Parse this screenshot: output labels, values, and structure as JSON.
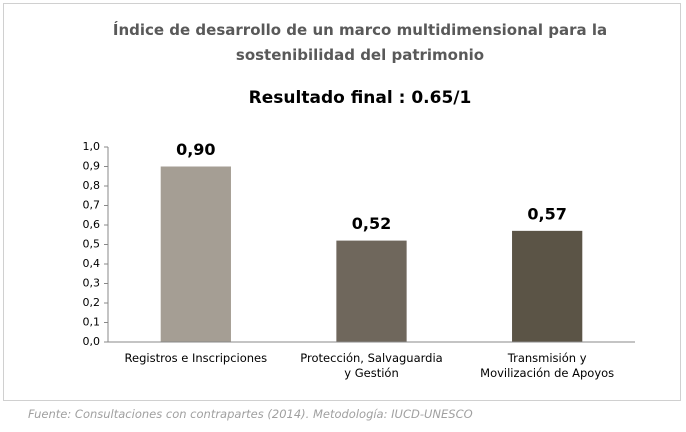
{
  "chart_data": {
    "type": "bar",
    "title": "Índice de desarrollo de un marco multidimensional para la sostenibilidad del patrimonio",
    "subtitle": "Resultado  final : 0.65/1",
    "categories": [
      "Registros e Inscripciones",
      "Protección, Salvaguardia y Gestión",
      "Transmisión y Movilización de Apoyos"
    ],
    "values": [
      0.9,
      0.52,
      0.57
    ],
    "value_labels": [
      "0,90",
      "0,52",
      "0,57"
    ],
    "colors": [
      "#a59e94",
      "#6f675c",
      "#5b5446"
    ],
    "ylim": [
      0,
      1
    ],
    "yticks": [
      {
        "value": 0,
        "label": "0,0"
      },
      {
        "value": 0.1,
        "label": "0,1"
      },
      {
        "value": 0.2,
        "label": "0,2"
      },
      {
        "value": 0.3,
        "label": "0,3"
      },
      {
        "value": 0.4,
        "label": "0,4"
      },
      {
        "value": 0.5,
        "label": "0,5"
      },
      {
        "value": 0.6,
        "label": "0,6"
      },
      {
        "value": 0.7,
        "label": "0,7"
      },
      {
        "value": 0.8,
        "label": "0,8"
      },
      {
        "value": 0.9,
        "label": "0,9"
      },
      {
        "value": 1,
        "label": "1,0"
      }
    ],
    "grid": false,
    "source": "Fuente: Consultaciones con contrapartes (2014). Metodología: IUCD-UNESCO"
  }
}
